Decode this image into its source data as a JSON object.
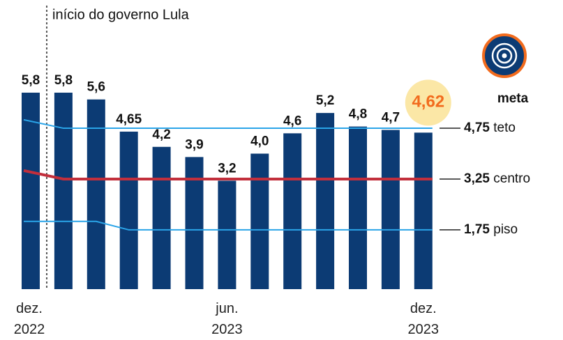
{
  "chart_data": {
    "type": "bar",
    "categories": [
      "dez. 2022",
      null,
      null,
      null,
      null,
      null,
      "jun. 2023",
      null,
      null,
      null,
      null,
      null,
      "dez. 2023"
    ],
    "values": [
      5.8,
      5.8,
      5.6,
      4.65,
      4.2,
      3.9,
      3.2,
      4.0,
      4.6,
      5.2,
      4.8,
      4.7,
      4.62
    ],
    "value_labels": [
      "5,8",
      "5,8",
      "5,6",
      "4,65",
      "4,2",
      "3,9",
      "3,2",
      "4,0",
      "4,6",
      "5,2",
      "4,8",
      "4,7",
      "4,62"
    ],
    "color": "#0c3b74",
    "highlight_color": "#f26b1d",
    "ylim": [
      0,
      5.8
    ],
    "series": [
      {
        "name": "teto",
        "color": "#2aa4e8",
        "values": [
          5.0,
          4.75,
          4.75,
          4.75,
          4.75,
          4.75,
          4.75,
          4.75,
          4.75,
          4.75,
          4.75,
          4.75,
          4.75
        ],
        "end_label": "4,75"
      },
      {
        "name": "centro",
        "color": "#c22f3c",
        "values": [
          3.5,
          3.25,
          3.25,
          3.25,
          3.25,
          3.25,
          3.25,
          3.25,
          3.25,
          3.25,
          3.25,
          3.25,
          3.25
        ],
        "end_label": "3,25"
      },
      {
        "name": "piso",
        "color": "#2aa4e8",
        "values": [
          2.0,
          2.0,
          2.0,
          1.75,
          1.75,
          1.75,
          1.75,
          1.75,
          1.75,
          1.75,
          1.75,
          1.75,
          1.75
        ],
        "end_label": "1,75"
      }
    ],
    "annotation": "início do governo Lula",
    "legend_title": "meta"
  }
}
